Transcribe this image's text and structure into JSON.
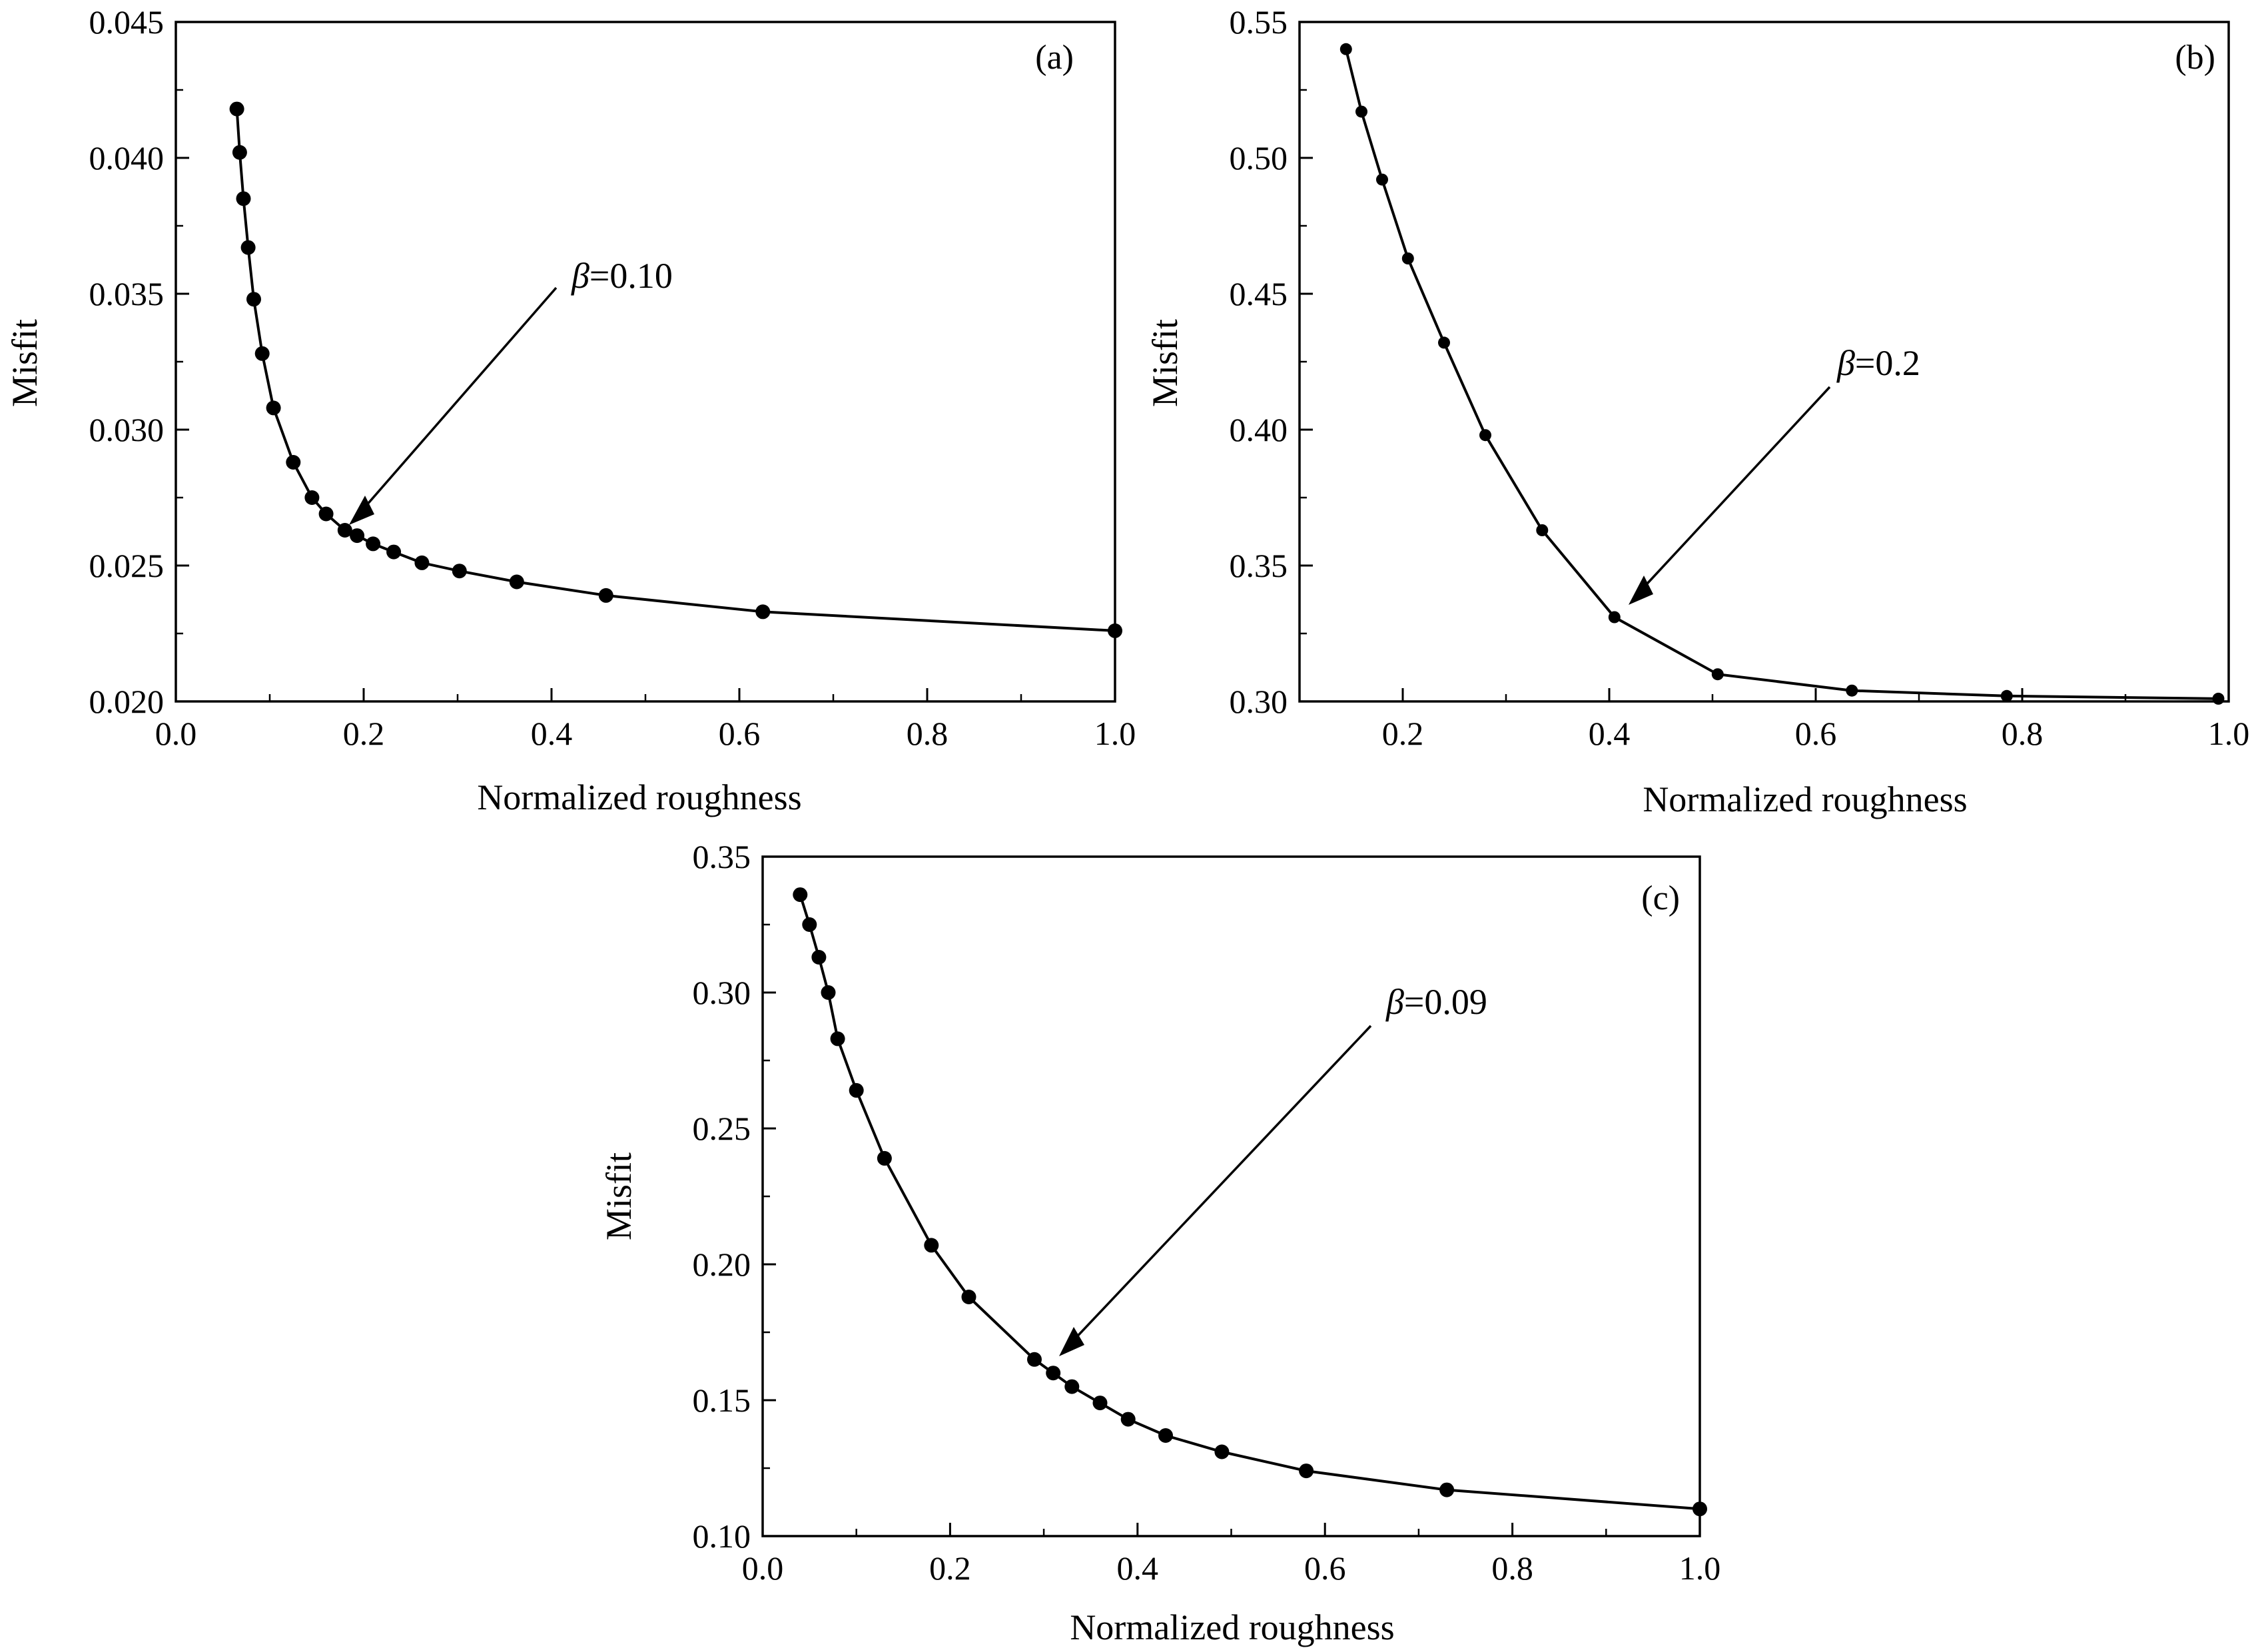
{
  "chart_data": [
    {
      "type": "line",
      "panel_label": "(a)",
      "xlabel": "Normalized roughness",
      "ylabel": "Misfit",
      "xlim": [
        0.0,
        1.0
      ],
      "ylim": [
        0.02,
        0.045
      ],
      "xticks": [
        "0.0",
        "0.2",
        "0.4",
        "0.6",
        "0.8",
        "1.0"
      ],
      "yticks": [
        "0.020",
        "0.025",
        "0.030",
        "0.035",
        "0.040",
        "0.045"
      ],
      "grid": false,
      "marker": "circle",
      "series": [
        {
          "x": [
            0.065,
            0.068,
            0.072,
            0.077,
            0.083,
            0.092,
            0.104,
            0.125,
            0.145,
            0.16,
            0.18,
            0.193,
            0.21,
            0.232,
            0.262,
            0.302,
            0.363,
            0.458,
            0.625,
            1.0
          ],
          "y": [
            0.0418,
            0.0402,
            0.0385,
            0.0367,
            0.0348,
            0.0328,
            0.0308,
            0.0288,
            0.0275,
            0.0269,
            0.0263,
            0.0261,
            0.0258,
            0.0255,
            0.0251,
            0.0248,
            0.0244,
            0.0239,
            0.0233,
            0.0226
          ]
        }
      ],
      "annotation": {
        "symbol": "β",
        "text": "=0.10",
        "x": 0.19,
        "y": 0.0265
      }
    },
    {
      "type": "line",
      "panel_label": "(b)",
      "xlabel": "Normalized roughness",
      "ylabel": "Misfit",
      "xlim": [
        0.1,
        1.0
      ],
      "ylim": [
        0.3,
        0.55
      ],
      "xticks": [
        "0.2",
        "0.4",
        "0.6",
        "0.8",
        "1.0"
      ],
      "yticks": [
        "0.30",
        "0.35",
        "0.40",
        "0.45",
        "0.50",
        "0.55"
      ],
      "grid": false,
      "marker": "circle",
      "series": [
        {
          "x": [
            0.145,
            0.16,
            0.18,
            0.205,
            0.24,
            0.28,
            0.335,
            0.405,
            0.505,
            0.635,
            0.785,
            0.99
          ],
          "y": [
            0.54,
            0.517,
            0.492,
            0.463,
            0.432,
            0.398,
            0.363,
            0.331,
            0.31,
            0.304,
            0.302,
            0.301
          ]
        }
      ],
      "annotation": {
        "symbol": "β",
        "text": "=0.2",
        "x": 0.405,
        "y": 0.331
      }
    },
    {
      "type": "line",
      "panel_label": "(c)",
      "xlabel": "Normalized roughness",
      "ylabel": "Misfit",
      "xlim": [
        0.0,
        1.0
      ],
      "ylim": [
        0.1,
        0.35
      ],
      "xticks": [
        "0.0",
        "0.2",
        "0.4",
        "0.6",
        "0.8",
        "1.0"
      ],
      "yticks": [
        "0.10",
        "0.15",
        "0.20",
        "0.25",
        "0.30",
        "0.35"
      ],
      "grid": false,
      "marker": "circle",
      "series": [
        {
          "x": [
            0.04,
            0.05,
            0.06,
            0.07,
            0.08,
            0.1,
            0.13,
            0.18,
            0.22,
            0.29,
            0.31,
            0.33,
            0.36,
            0.39,
            0.43,
            0.49,
            0.58,
            0.73,
            1.0
          ],
          "y": [
            0.336,
            0.325,
            0.313,
            0.3,
            0.283,
            0.264,
            0.239,
            0.207,
            0.188,
            0.165,
            0.16,
            0.155,
            0.149,
            0.143,
            0.137,
            0.131,
            0.124,
            0.117,
            0.11
          ]
        }
      ],
      "annotation": {
        "symbol": "β",
        "text": "=0.09",
        "x": 0.31,
        "y": 0.162
      }
    }
  ]
}
